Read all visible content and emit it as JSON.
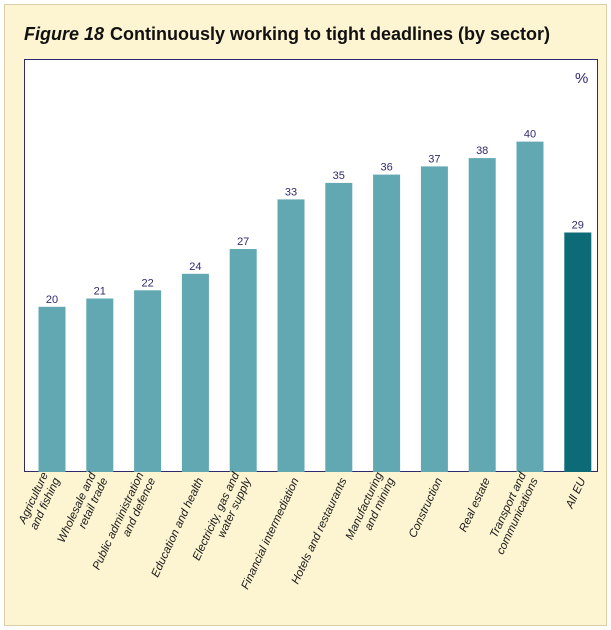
{
  "figure_label": "Figure 18",
  "title": "Continuously working to tight deadlines (by sector)",
  "unit_label": "%",
  "colors": {
    "bar": "#62a8b2",
    "highlight": "#0d6b78",
    "label": "#2f2a6e",
    "background": "#fdf4d2"
  },
  "chart_data": {
    "type": "bar",
    "title": "Continuously working to tight deadlines (by sector)",
    "ylabel": "%",
    "ylim": [
      0,
      50
    ],
    "grid": false,
    "categories": [
      "Agriculture\nand fishing",
      "Wholesale and\nretail trade",
      "Public administration\nand defence",
      "Education and health",
      "Electricity, gas and\nwater supply",
      "Financial intermediation",
      "Hotels and restaurants",
      "Manufacturing\nand mining",
      "Construction",
      "Real estate",
      "Transport and\ncommunications",
      "All EU"
    ],
    "values": [
      20,
      21,
      22,
      24,
      27,
      33,
      35,
      36,
      37,
      38,
      40,
      29
    ],
    "highlight_category": "All EU"
  }
}
